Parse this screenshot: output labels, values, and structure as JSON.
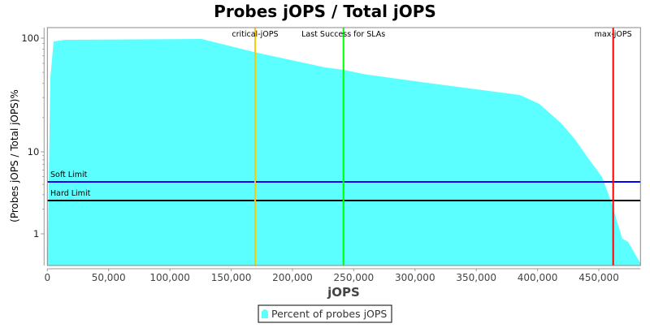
{
  "chart_data": {
    "type": "area",
    "title": "Probes jOPS / Total jOPS",
    "xlabel": "jOPS",
    "ylabel": "(Probes jOPS / Total jOPS)%",
    "y_scale": "log",
    "xlim": [
      0,
      484000
    ],
    "ylim": [
      0.41,
      124
    ],
    "x_ticks": [
      0,
      50000,
      100000,
      150000,
      200000,
      250000,
      300000,
      350000,
      400000,
      450000
    ],
    "x_tick_labels": [
      "0",
      "50,000",
      "100,000",
      "150,000",
      "200,000",
      "250,000",
      "300,000",
      "350,000",
      "400,000",
      "450,000"
    ],
    "y_ticks": [
      1,
      10,
      100
    ],
    "y_tick_labels": [
      "1",
      "10",
      "100"
    ],
    "grid": false,
    "legend_position": "bottom",
    "series": [
      {
        "name": "Percent of probes jOPS",
        "color": "#5bffff",
        "x": [
          0,
          2500,
          5100,
          14400,
          125800,
          169500,
          226500,
          241600,
          259700,
          314700,
          385600,
          401500,
          419400,
          430700,
          442000,
          452600,
          460500,
          464500,
          469200,
          473800,
          480400,
          484000
        ],
        "y": [
          0.42,
          45.4,
          93.6,
          96.8,
          98.4,
          75.2,
          55.3,
          52.6,
          48.0,
          39.8,
          31.6,
          26.4,
          17.8,
          12.8,
          8.1,
          4.93,
          2.38,
          1.47,
          0.87,
          0.8,
          0.54,
          0.44
        ]
      }
    ],
    "vertical_markers": [
      {
        "label": "critical-jOPS",
        "x": 169500,
        "color": "#ffc800"
      },
      {
        "label": "Last Success for SLAs",
        "x": 241600,
        "color": "#00ff00"
      },
      {
        "label": "max-jOPS",
        "x": 461700,
        "color": "#ff0000"
      }
    ],
    "horizontal_markers": [
      {
        "label": "Soft Limit",
        "y": 4.3,
        "color": "#0000ff"
      },
      {
        "label": "Hard Limit",
        "y": 2.55,
        "color": "#000000"
      }
    ]
  }
}
